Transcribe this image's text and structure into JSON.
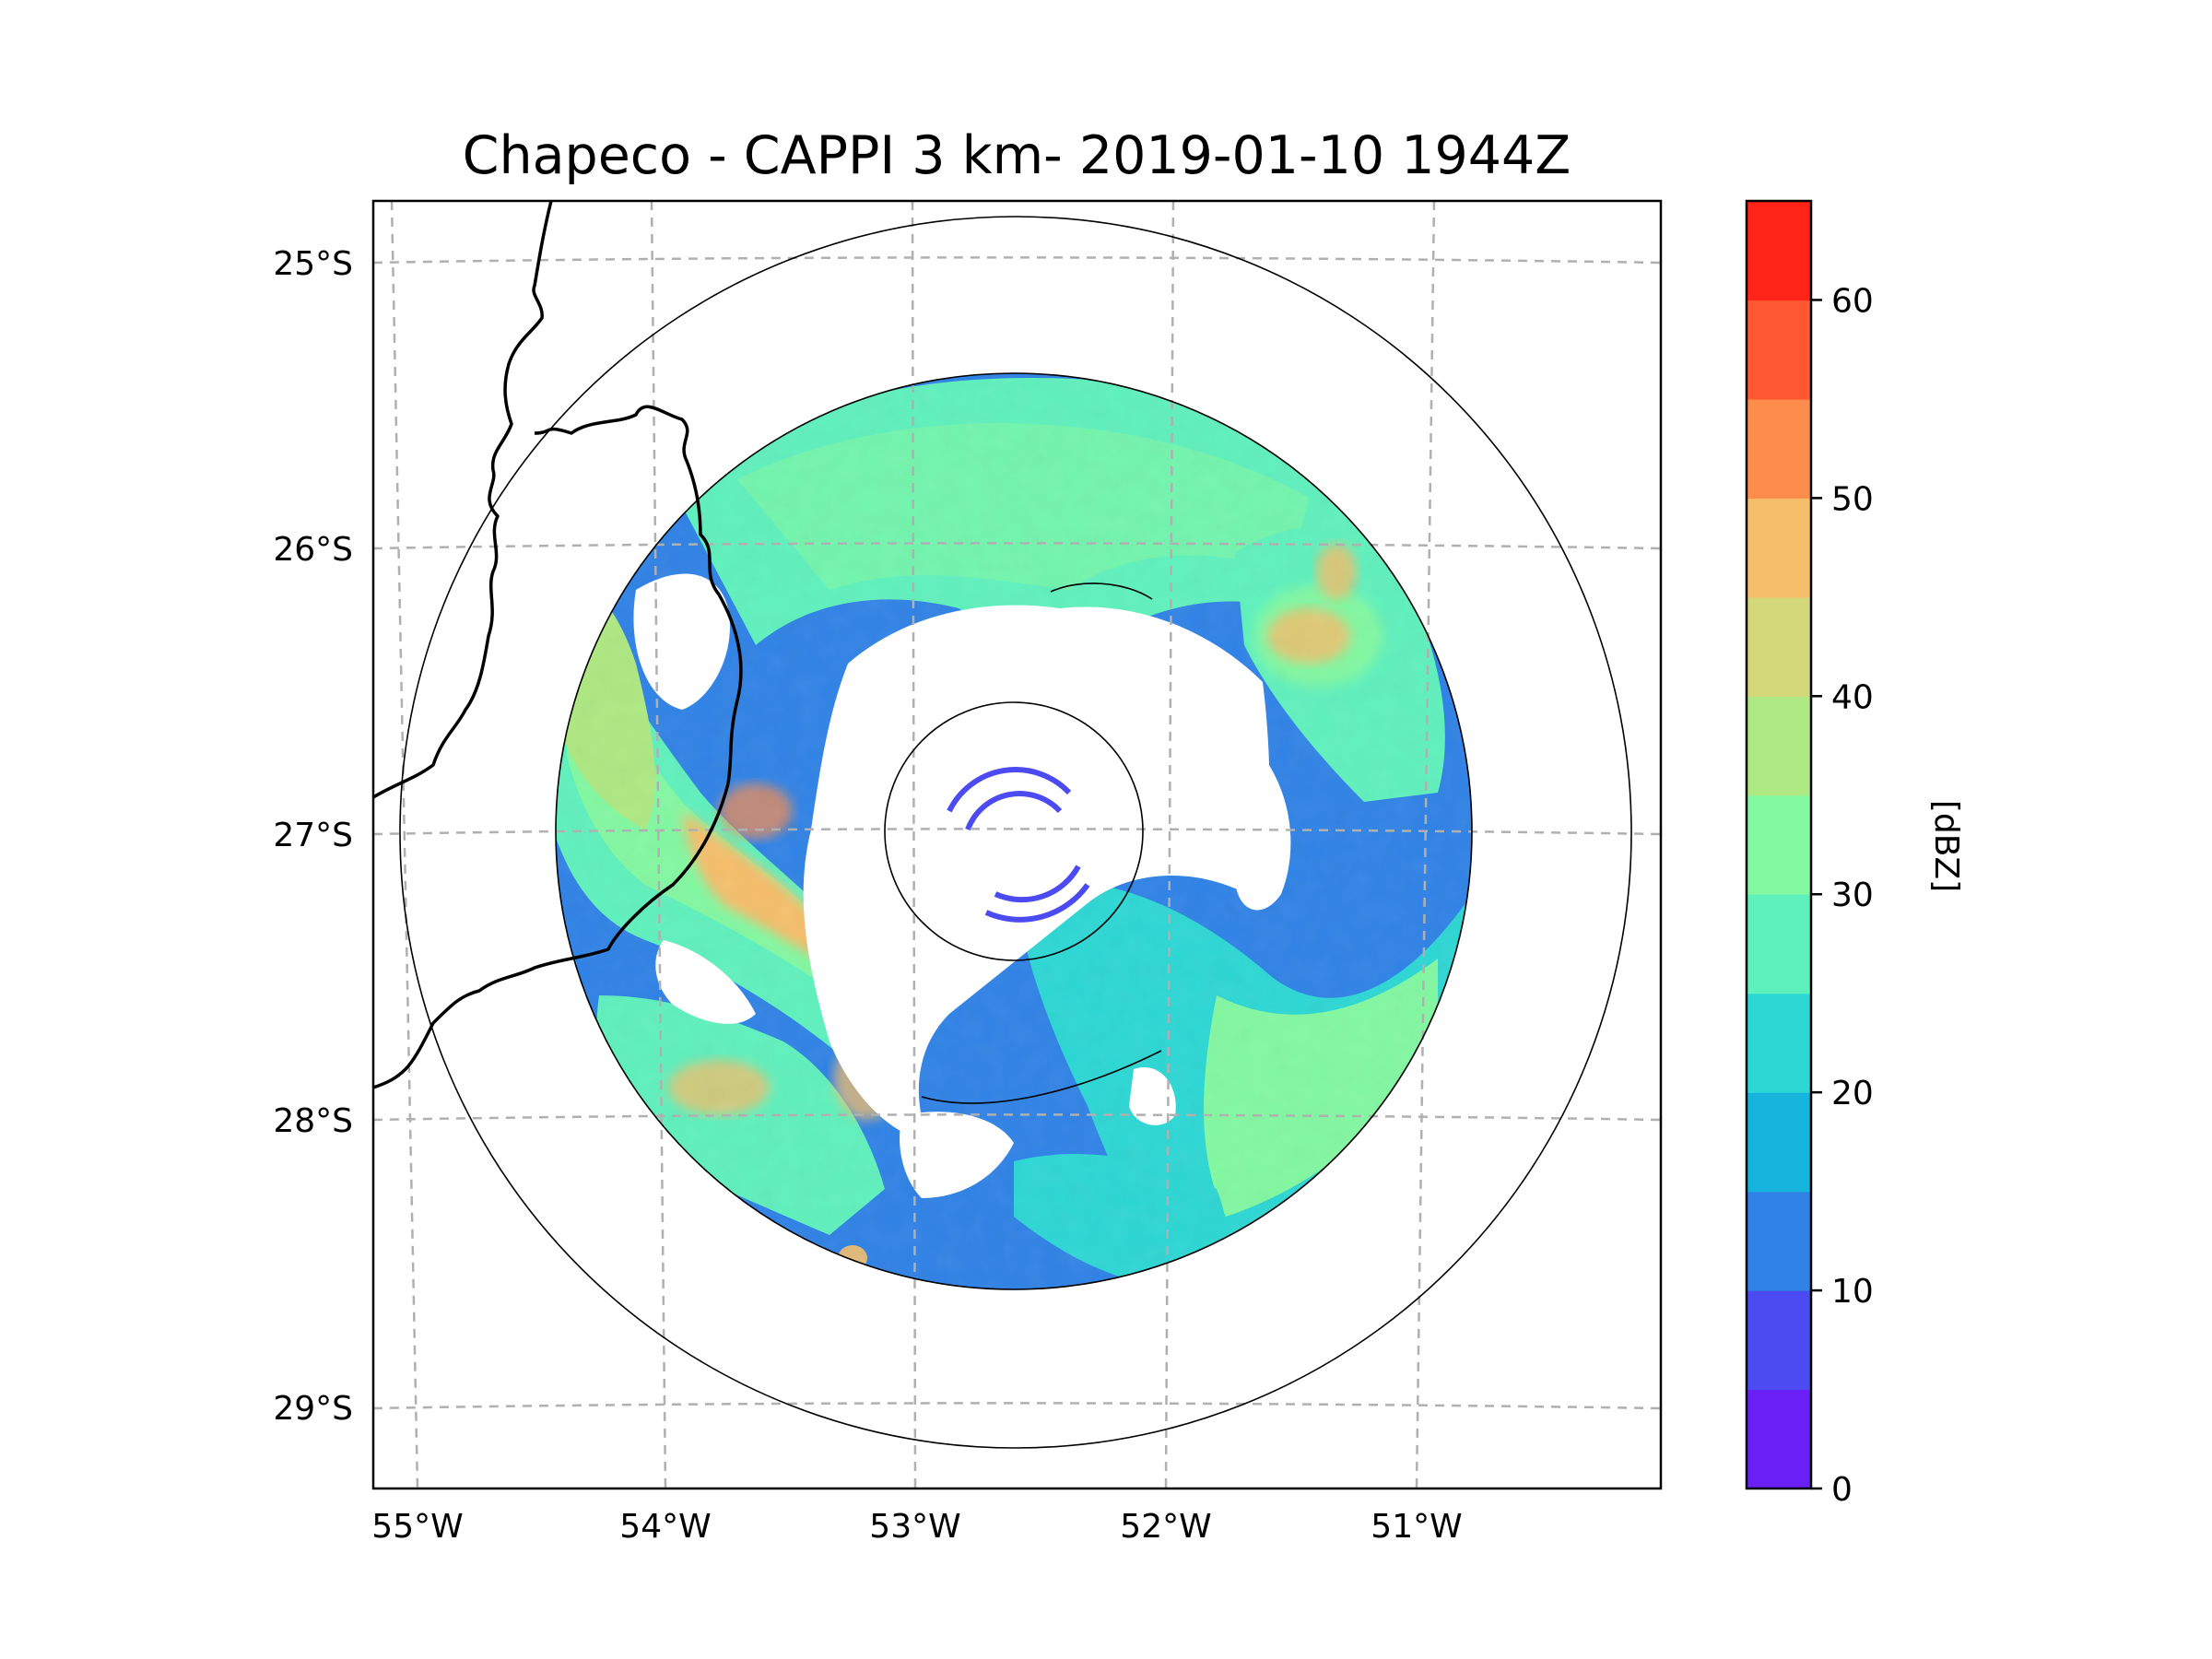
{
  "title": "Chapeco - CAPPI 3 km- 2019-01-10 1944Z",
  "colorbar": {
    "label": "[dBZ]",
    "ticks": [
      "0",
      "10",
      "20",
      "30",
      "40",
      "50",
      "60"
    ],
    "colors": [
      "#6a1ff7",
      "#4c4bf2",
      "#2f82e6",
      "#16b4dc",
      "#2cd7d4",
      "#5ff1bd",
      "#82f8a1",
      "#aee882",
      "#d4d779",
      "#f5be6a",
      "#fd8d4c",
      "#fe5833",
      "#ff2417"
    ]
  },
  "map": {
    "lon_labels": [
      "55°W",
      "54°W",
      "53°W",
      "52°W",
      "51°W"
    ],
    "lat_labels": [
      "25°S",
      "26°S",
      "27°S",
      "28°S",
      "29°S"
    ],
    "outer_range_ring_km": 250,
    "radar_coverage_km": 200
  },
  "radar_site": {
    "name": "Chapeco",
    "lon": -52.6,
    "lat": -27.0
  },
  "echo_regions": [
    {
      "id": "north-band",
      "dbz": 25
    },
    {
      "id": "northeast-cell",
      "dbz": 40
    },
    {
      "id": "west-line",
      "dbz": 45
    },
    {
      "id": "southeast-stratiform",
      "dbz": 25
    },
    {
      "id": "southwest-cells",
      "dbz": 35
    }
  ]
}
